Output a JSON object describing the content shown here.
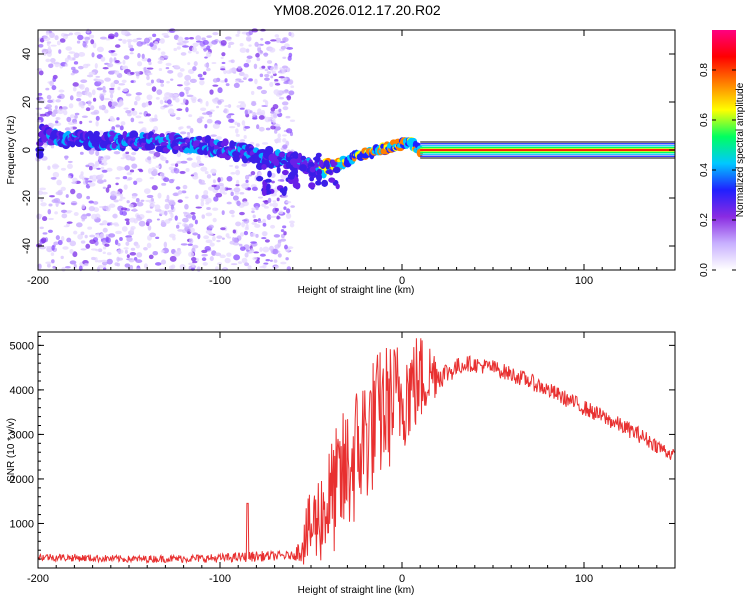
{
  "title": "YM08.2026.012.17.20.R02",
  "chart_data": [
    {
      "type": "heatmap",
      "xlabel": "Height of straight line (km)",
      "ylabel": "Frequency (Hz)",
      "xlim": [
        -200,
        150
      ],
      "ylim": [
        -50,
        50
      ],
      "xticks": [
        -200,
        -100,
        0,
        100
      ],
      "yticks": [
        -40,
        -20,
        0,
        20,
        40
      ],
      "colorbar": {
        "label": "Normalized spectral amplitude",
        "range": [
          0,
          1
        ],
        "ticks": [
          "0.0",
          "0.2",
          "0.4",
          "0.6",
          "0.8"
        ],
        "colors": [
          "#ffffff",
          "#c8b0ff",
          "#8a2be2",
          "#2020ff",
          "#00c8ff",
          "#00ff60",
          "#ffff00",
          "#ff8000",
          "#ff0000",
          "#ff0080"
        ]
      },
      "ridge": [
        {
          "x": -198,
          "y": 7
        },
        {
          "x": -190,
          "y": 5
        },
        {
          "x": -175,
          "y": 4
        },
        {
          "x": -150,
          "y": 4
        },
        {
          "x": -130,
          "y": 3
        },
        {
          "x": -110,
          "y": 2
        },
        {
          "x": -95,
          "y": 0
        },
        {
          "x": -80,
          "y": -2
        },
        {
          "x": -65,
          "y": -4
        },
        {
          "x": -55,
          "y": -6
        },
        {
          "x": -48,
          "y": -8
        },
        {
          "x": -40,
          "y": -7
        },
        {
          "x": -32,
          "y": -5
        },
        {
          "x": -22,
          "y": -2
        },
        {
          "x": -12,
          "y": 0
        },
        {
          "x": -3,
          "y": 2
        },
        {
          "x": 5,
          "y": 3
        },
        {
          "x": 10,
          "y": 0
        },
        {
          "x": 150,
          "y": 0
        }
      ],
      "noise_region_x": [
        -200,
        -60
      ]
    },
    {
      "type": "line",
      "xlabel": "Height of straight line (km)",
      "ylabel": "SNR (10 * v/v)",
      "xlim": [
        -200,
        150
      ],
      "ylim": [
        0,
        5300
      ],
      "xticks": [
        -200,
        -100,
        0,
        100
      ],
      "yticks": [
        1000,
        2000,
        3000,
        4000,
        5000
      ],
      "color": "#e83030",
      "envelope": [
        {
          "x": -200,
          "base": 250,
          "spread": 150
        },
        {
          "x": -150,
          "base": 200,
          "spread": 130
        },
        {
          "x": -100,
          "base": 220,
          "spread": 160
        },
        {
          "x": -80,
          "base": 260,
          "spread": 200
        },
        {
          "x": -60,
          "base": 280,
          "spread": 150
        },
        {
          "x": -50,
          "base": 600,
          "spread": 900
        },
        {
          "x": -40,
          "base": 1100,
          "spread": 1300
        },
        {
          "x": -30,
          "base": 1700,
          "spread": 1600
        },
        {
          "x": -20,
          "base": 2500,
          "spread": 1600
        },
        {
          "x": -10,
          "base": 3100,
          "spread": 1500
        },
        {
          "x": 0,
          "base": 3500,
          "spread": 1300
        },
        {
          "x": 10,
          "base": 3900,
          "spread": 1100
        },
        {
          "x": 20,
          "base": 4300,
          "spread": 500
        },
        {
          "x": 35,
          "base": 4600,
          "spread": 300
        },
        {
          "x": 50,
          "base": 4500,
          "spread": 300
        },
        {
          "x": 70,
          "base": 4200,
          "spread": 300
        },
        {
          "x": 90,
          "base": 3800,
          "spread": 300
        },
        {
          "x": 110,
          "base": 3400,
          "spread": 300
        },
        {
          "x": 130,
          "base": 3000,
          "spread": 300
        },
        {
          "x": 150,
          "base": 2500,
          "spread": 250
        }
      ],
      "spike": {
        "x": -85,
        "value": 1450
      }
    }
  ]
}
